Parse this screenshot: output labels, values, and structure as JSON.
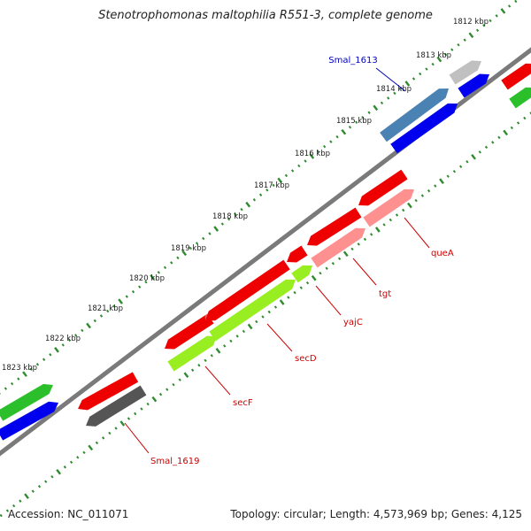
{
  "title": "Stenotrophomonas maltophilia R551-3, complete genome",
  "footer": {
    "accession": "Accession: NC_011071",
    "topology": "Topology: circular; Length: 4,573,969 bp; Genes: 4,125"
  },
  "colors": {
    "backbone": "#7a7a7a",
    "ticks": "#2e8b2e",
    "locus_label_blue": "#0000c0",
    "locus_label_red": "#cc0000"
  },
  "ticks": [
    "1812 kbp",
    "1813 kbp",
    "1814 kbp",
    "1815 kbp",
    "1816 kbp",
    "1817 kbp",
    "1818 kbp",
    "1819 kbp",
    "1820 kbp",
    "1821 kbp",
    "1822 kbp",
    "1823 kbp"
  ],
  "features": [
    {
      "label": "Smal_1613",
      "label_color": "blue"
    },
    {
      "label": "queA",
      "label_color": "red"
    },
    {
      "label": "tgt",
      "label_color": "red"
    },
    {
      "label": "yajC",
      "label_color": "red"
    },
    {
      "label": "secD",
      "label_color": "red"
    },
    {
      "label": "secF",
      "label_color": "red"
    },
    {
      "label": "Smal_1619",
      "label_color": "red"
    }
  ]
}
